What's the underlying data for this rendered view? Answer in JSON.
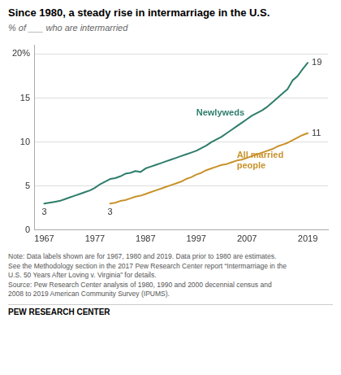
{
  "chart_data": {
    "type": "line",
    "title": "Since 1980, a steady rise in intermarriage in the U.S.",
    "subtitle": "% of ___ who are intermarried",
    "series": [
      {
        "name": "Newlyweds",
        "color": "#2d7d6b",
        "label_x": 1997,
        "label_y": 12.8,
        "x": [
          1967,
          1968,
          1969,
          1970,
          1971,
          1972,
          1973,
          1974,
          1975,
          1976,
          1977,
          1978,
          1979,
          1980,
          1981,
          1982,
          1983,
          1984,
          1985,
          1986,
          1987,
          1988,
          1989,
          1990,
          1991,
          1992,
          1993,
          1994,
          1995,
          1996,
          1997,
          1998,
          1999,
          2000,
          2001,
          2002,
          2003,
          2004,
          2005,
          2006,
          2007,
          2008,
          2009,
          2010,
          2011,
          2012,
          2013,
          2014,
          2015,
          2016,
          2017,
          2018,
          2019
        ],
        "values": [
          3.0,
          3.1,
          3.2,
          3.3,
          3.5,
          3.7,
          3.9,
          4.1,
          4.3,
          4.5,
          4.8,
          5.2,
          5.5,
          5.8,
          5.9,
          6.1,
          6.4,
          6.5,
          6.7,
          6.6,
          7.0,
          7.2,
          7.4,
          7.6,
          7.8,
          8.0,
          8.2,
          8.4,
          8.6,
          8.8,
          9.0,
          9.3,
          9.6,
          10.0,
          10.3,
          10.6,
          11.0,
          11.4,
          11.8,
          12.2,
          12.6,
          13.0,
          13.3,
          13.6,
          14.0,
          14.5,
          15.0,
          15.5,
          16.0,
          17.0,
          17.5,
          18.3,
          19.0
        ]
      },
      {
        "name": "All married\npeople",
        "color": "#c8922a",
        "label_x": 2005,
        "label_y": 9.0,
        "x": [
          1980,
          1981,
          1982,
          1983,
          1984,
          1985,
          1986,
          1987,
          1988,
          1989,
          1990,
          1991,
          1992,
          1993,
          1994,
          1995,
          1996,
          1997,
          1998,
          1999,
          2000,
          2001,
          2002,
          2003,
          2004,
          2005,
          2006,
          2007,
          2008,
          2009,
          2010,
          2011,
          2012,
          2013,
          2014,
          2015,
          2016,
          2017,
          2018,
          2019
        ],
        "values": [
          3.0,
          3.1,
          3.3,
          3.4,
          3.6,
          3.8,
          3.9,
          4.1,
          4.3,
          4.5,
          4.7,
          4.9,
          5.1,
          5.3,
          5.5,
          5.8,
          6.0,
          6.3,
          6.5,
          6.8,
          7.0,
          7.2,
          7.4,
          7.5,
          7.7,
          7.9,
          8.0,
          8.2,
          8.4,
          8.6,
          8.8,
          9.0,
          9.2,
          9.5,
          9.7,
          9.9,
          10.2,
          10.5,
          10.8,
          11.0
        ]
      }
    ],
    "xlim": [
      1965,
      2023
    ],
    "xticks": [
      1967,
      1977,
      1987,
      1997,
      2007,
      2019
    ],
    "ylim": [
      0,
      21
    ],
    "yticks": [
      0,
      5,
      10,
      15,
      {
        "value": 20,
        "label": "20%"
      }
    ],
    "grid": "y",
    "legend": false,
    "annotations": [
      {
        "text": "3",
        "x": 1967,
        "y": 3.0
      },
      {
        "text": "3",
        "x": 1980,
        "y": 3.0
      },
      {
        "text": "19",
        "x": 2019,
        "y": 19.0
      },
      {
        "text": "11",
        "x": 2019,
        "y": 11.0
      }
    ],
    "note": "Note: Data labels shown are for 1967, 1980 and 2019. Data prior to 1980 are estimates.\nSee the Methodology section in the 2017 Pew Research Center report “Intermarriage in the\nU.S. 50 Years After Loving v. Virginia” for details.\nSource: Pew Research Center analysis of 1980, 1990 and 2000 decennial census and\n2008 to 2019 American Community Survey (IPUMS).",
    "source": "PEW RESEARCH CENTER"
  }
}
